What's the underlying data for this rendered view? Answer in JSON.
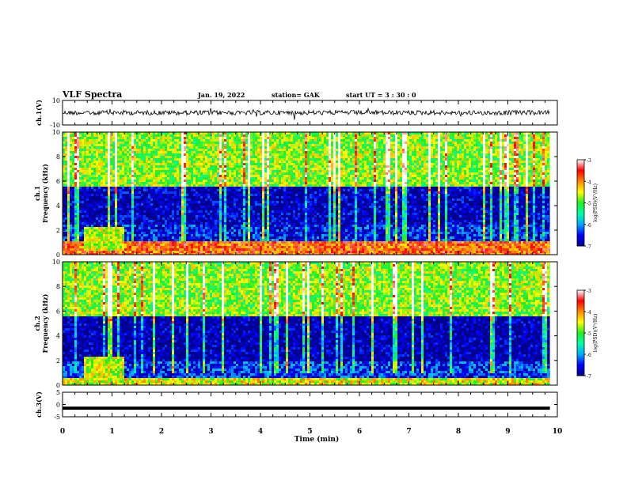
{
  "header": {
    "title": "VLF Spectra",
    "date": "Jan. 19, 2022",
    "station": "station= GAK",
    "start_ut": "start UT =  3 : 30 : 0"
  },
  "colorbar": {
    "label": "log(PSD)(V²/Hz)",
    "ticks": [
      "-3",
      "-4",
      "-5",
      "-6",
      "-7"
    ],
    "range": [
      -7,
      -3
    ],
    "colors": [
      "#000088",
      "#0000ff",
      "#00aaff",
      "#00ffaa",
      "#22ee22",
      "#ffff00",
      "#ff8800",
      "#ff0000",
      "#ffffff"
    ]
  },
  "chart_data": [
    {
      "type": "line",
      "name": "ch1-waveform",
      "ylabel": "ch.1(V)",
      "ylim": [
        -10,
        10
      ],
      "yticks": [
        "10",
        "-10"
      ],
      "xlim": [
        0,
        10
      ],
      "approx_level": 0,
      "note_visible": "noisy waveform near 0 V"
    },
    {
      "type": "heatmap",
      "name": "ch1-spectrogram",
      "ylabel_line1": "ch.1",
      "ylabel_line2": "Frequency (kHz)",
      "ylim": [
        0,
        10
      ],
      "yticks": [
        "10",
        "8",
        "6",
        "4",
        "2",
        "0"
      ],
      "xlim": [
        0,
        10
      ],
      "bands_khz": [
        {
          "from": 0,
          "to": 1,
          "level": -3.8
        },
        {
          "from": 1,
          "to": 2.5,
          "level": -6.5
        },
        {
          "from": 2.5,
          "to": 5.5,
          "level": -6.8
        },
        {
          "from": 5.5,
          "to": 10,
          "level": -4.8
        }
      ],
      "burst_minutes": [
        0.4,
        1.2
      ]
    },
    {
      "type": "heatmap",
      "name": "ch2-spectrogram",
      "ylabel_line1": "ch.2",
      "ylabel_line2": "Frequency (kHz)",
      "ylim": [
        0,
        10
      ],
      "yticks": [
        "10",
        "8",
        "6",
        "4",
        "2",
        "0"
      ],
      "xlim": [
        0,
        10
      ],
      "bands_khz": [
        {
          "from": 0,
          "to": 0.5,
          "level": -4.5
        },
        {
          "from": 0.5,
          "to": 2,
          "level": -6.4
        },
        {
          "from": 2,
          "to": 5.5,
          "level": -6.9
        },
        {
          "from": 5.5,
          "to": 10,
          "level": -4.8
        }
      ],
      "burst_minutes": [
        0.4,
        1.2
      ]
    },
    {
      "type": "line",
      "name": "ch3-waveform",
      "ylabel": "ch.3(V)",
      "ylim": [
        -5,
        5
      ],
      "yticks": [
        "5",
        "0",
        "-5"
      ],
      "xlim": [
        0,
        10
      ],
      "approx_level": -1.5
    }
  ],
  "xaxis": {
    "label": "Time (min)",
    "ticks": [
      "0",
      "1",
      "2",
      "3",
      "4",
      "5",
      "6",
      "7",
      "8",
      "9",
      "10"
    ],
    "data_end_min": 9.85
  }
}
